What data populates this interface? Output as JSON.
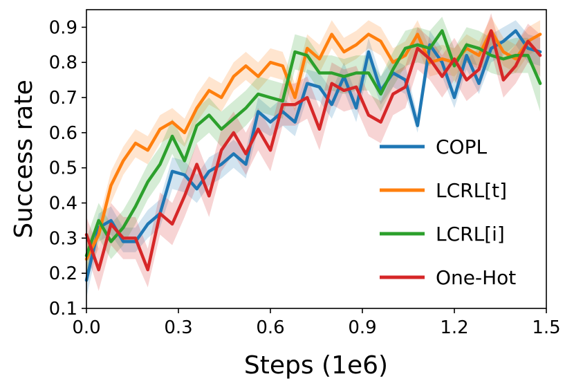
{
  "chart_data": {
    "type": "line",
    "title": "",
    "xlabel": "Steps (1e6)",
    "ylabel": "Success rate",
    "xlim": [
      0.0,
      1.5
    ],
    "ylim": [
      0.1,
      0.95
    ],
    "xticks": [
      "0.0",
      "0.3",
      "0.6",
      "0.9",
      "1.2",
      "1.5"
    ],
    "yticks": [
      "0.1",
      "0.2",
      "0.3",
      "0.4",
      "0.5",
      "0.6",
      "0.7",
      "0.8",
      "0.9"
    ],
    "grid": false,
    "legend_position": "right",
    "x": [
      0.0,
      0.04,
      0.08,
      0.12,
      0.16,
      0.2,
      0.24,
      0.28,
      0.32,
      0.36,
      0.4,
      0.44,
      0.48,
      0.52,
      0.56,
      0.6,
      0.64,
      0.68,
      0.72,
      0.76,
      0.8,
      0.84,
      0.88,
      0.92,
      0.96,
      1.0,
      1.04,
      1.08,
      1.12,
      1.16,
      1.2,
      1.24,
      1.28,
      1.32,
      1.36,
      1.4,
      1.44,
      1.48
    ],
    "series": [
      {
        "name": "COPL",
        "color": "#1f77b4",
        "values": [
          0.18,
          0.33,
          0.35,
          0.29,
          0.29,
          0.34,
          0.37,
          0.49,
          0.48,
          0.44,
          0.49,
          0.51,
          0.54,
          0.51,
          0.66,
          0.63,
          0.66,
          0.63,
          0.74,
          0.73,
          0.68,
          0.76,
          0.67,
          0.83,
          0.72,
          0.77,
          0.75,
          0.62,
          0.85,
          0.8,
          0.7,
          0.82,
          0.74,
          0.84,
          0.86,
          0.89,
          0.84,
          0.83
        ],
        "lower": [
          0.13,
          0.29,
          0.31,
          0.26,
          0.26,
          0.3,
          0.33,
          0.44,
          0.43,
          0.4,
          0.45,
          0.47,
          0.5,
          0.47,
          0.61,
          0.59,
          0.62,
          0.59,
          0.7,
          0.69,
          0.64,
          0.72,
          0.63,
          0.78,
          0.68,
          0.73,
          0.71,
          0.6,
          0.81,
          0.76,
          0.67,
          0.78,
          0.71,
          0.8,
          0.82,
          0.85,
          0.8,
          0.79
        ],
        "upper": [
          0.22,
          0.37,
          0.39,
          0.33,
          0.33,
          0.38,
          0.41,
          0.53,
          0.52,
          0.48,
          0.53,
          0.55,
          0.58,
          0.55,
          0.7,
          0.67,
          0.7,
          0.67,
          0.78,
          0.77,
          0.72,
          0.8,
          0.71,
          0.87,
          0.76,
          0.81,
          0.79,
          0.65,
          0.89,
          0.84,
          0.74,
          0.86,
          0.78,
          0.88,
          0.9,
          0.92,
          0.88,
          0.87
        ]
      },
      {
        "name": "LCRL[t]",
        "color": "#ff7f0e",
        "values": [
          0.24,
          0.31,
          0.45,
          0.52,
          0.57,
          0.55,
          0.61,
          0.63,
          0.6,
          0.67,
          0.72,
          0.7,
          0.76,
          0.79,
          0.76,
          0.8,
          0.79,
          0.7,
          0.84,
          0.81,
          0.88,
          0.83,
          0.85,
          0.88,
          0.86,
          0.8,
          0.82,
          0.88,
          0.8,
          0.81,
          0.8,
          0.84,
          0.82,
          0.89,
          0.83,
          0.81,
          0.86,
          0.88
        ],
        "lower": [
          0.2,
          0.27,
          0.4,
          0.48,
          0.53,
          0.51,
          0.57,
          0.59,
          0.56,
          0.63,
          0.68,
          0.66,
          0.72,
          0.75,
          0.72,
          0.76,
          0.75,
          0.66,
          0.8,
          0.77,
          0.84,
          0.79,
          0.81,
          0.84,
          0.82,
          0.76,
          0.78,
          0.84,
          0.76,
          0.77,
          0.76,
          0.8,
          0.78,
          0.85,
          0.79,
          0.77,
          0.82,
          0.84
        ],
        "upper": [
          0.28,
          0.35,
          0.49,
          0.56,
          0.61,
          0.59,
          0.65,
          0.67,
          0.64,
          0.71,
          0.76,
          0.74,
          0.8,
          0.83,
          0.8,
          0.84,
          0.83,
          0.74,
          0.88,
          0.85,
          0.92,
          0.87,
          0.89,
          0.92,
          0.9,
          0.84,
          0.86,
          0.92,
          0.84,
          0.85,
          0.84,
          0.88,
          0.86,
          0.93,
          0.87,
          0.85,
          0.9,
          0.92
        ]
      },
      {
        "name": "LCRL[i]",
        "color": "#2ca02c",
        "values": [
          0.25,
          0.35,
          0.29,
          0.33,
          0.39,
          0.46,
          0.51,
          0.59,
          0.52,
          0.62,
          0.65,
          0.61,
          0.64,
          0.67,
          0.71,
          0.7,
          0.69,
          0.83,
          0.82,
          0.77,
          0.77,
          0.76,
          0.77,
          0.77,
          0.71,
          0.78,
          0.84,
          0.85,
          0.84,
          0.89,
          0.79,
          0.85,
          0.84,
          0.82,
          0.81,
          0.82,
          0.82,
          0.74
        ],
        "lower": [
          0.2,
          0.3,
          0.24,
          0.28,
          0.34,
          0.41,
          0.46,
          0.54,
          0.47,
          0.57,
          0.6,
          0.56,
          0.59,
          0.62,
          0.66,
          0.65,
          0.64,
          0.78,
          0.77,
          0.72,
          0.72,
          0.71,
          0.72,
          0.72,
          0.66,
          0.73,
          0.79,
          0.8,
          0.79,
          0.84,
          0.74,
          0.8,
          0.79,
          0.77,
          0.76,
          0.77,
          0.77,
          0.66
        ],
        "upper": [
          0.3,
          0.4,
          0.34,
          0.38,
          0.44,
          0.51,
          0.56,
          0.64,
          0.57,
          0.67,
          0.7,
          0.66,
          0.69,
          0.72,
          0.76,
          0.75,
          0.74,
          0.88,
          0.87,
          0.82,
          0.82,
          0.81,
          0.82,
          0.82,
          0.76,
          0.83,
          0.89,
          0.9,
          0.89,
          0.93,
          0.84,
          0.9,
          0.89,
          0.87,
          0.86,
          0.87,
          0.87,
          0.82
        ]
      },
      {
        "name": "One-Hot",
        "color": "#d62728",
        "values": [
          0.31,
          0.21,
          0.34,
          0.3,
          0.3,
          0.21,
          0.37,
          0.34,
          0.42,
          0.51,
          0.42,
          0.55,
          0.6,
          0.54,
          0.61,
          0.55,
          0.68,
          0.68,
          0.7,
          0.61,
          0.74,
          0.72,
          0.73,
          0.65,
          0.63,
          0.71,
          0.73,
          0.84,
          0.81,
          0.76,
          0.81,
          0.75,
          0.78,
          0.89,
          0.75,
          0.79,
          0.86,
          0.82
        ],
        "lower": [
          0.26,
          0.15,
          0.28,
          0.24,
          0.24,
          0.16,
          0.31,
          0.28,
          0.36,
          0.45,
          0.36,
          0.49,
          0.54,
          0.48,
          0.55,
          0.49,
          0.62,
          0.62,
          0.64,
          0.55,
          0.68,
          0.66,
          0.67,
          0.59,
          0.57,
          0.65,
          0.67,
          0.78,
          0.75,
          0.7,
          0.75,
          0.69,
          0.72,
          0.83,
          0.7,
          0.74,
          0.8,
          0.76
        ],
        "upper": [
          0.36,
          0.27,
          0.4,
          0.36,
          0.36,
          0.27,
          0.43,
          0.4,
          0.48,
          0.57,
          0.48,
          0.61,
          0.66,
          0.6,
          0.67,
          0.61,
          0.74,
          0.74,
          0.76,
          0.67,
          0.8,
          0.78,
          0.79,
          0.71,
          0.69,
          0.77,
          0.79,
          0.9,
          0.87,
          0.82,
          0.87,
          0.81,
          0.84,
          0.94,
          0.81,
          0.85,
          0.91,
          0.88
        ]
      }
    ]
  }
}
